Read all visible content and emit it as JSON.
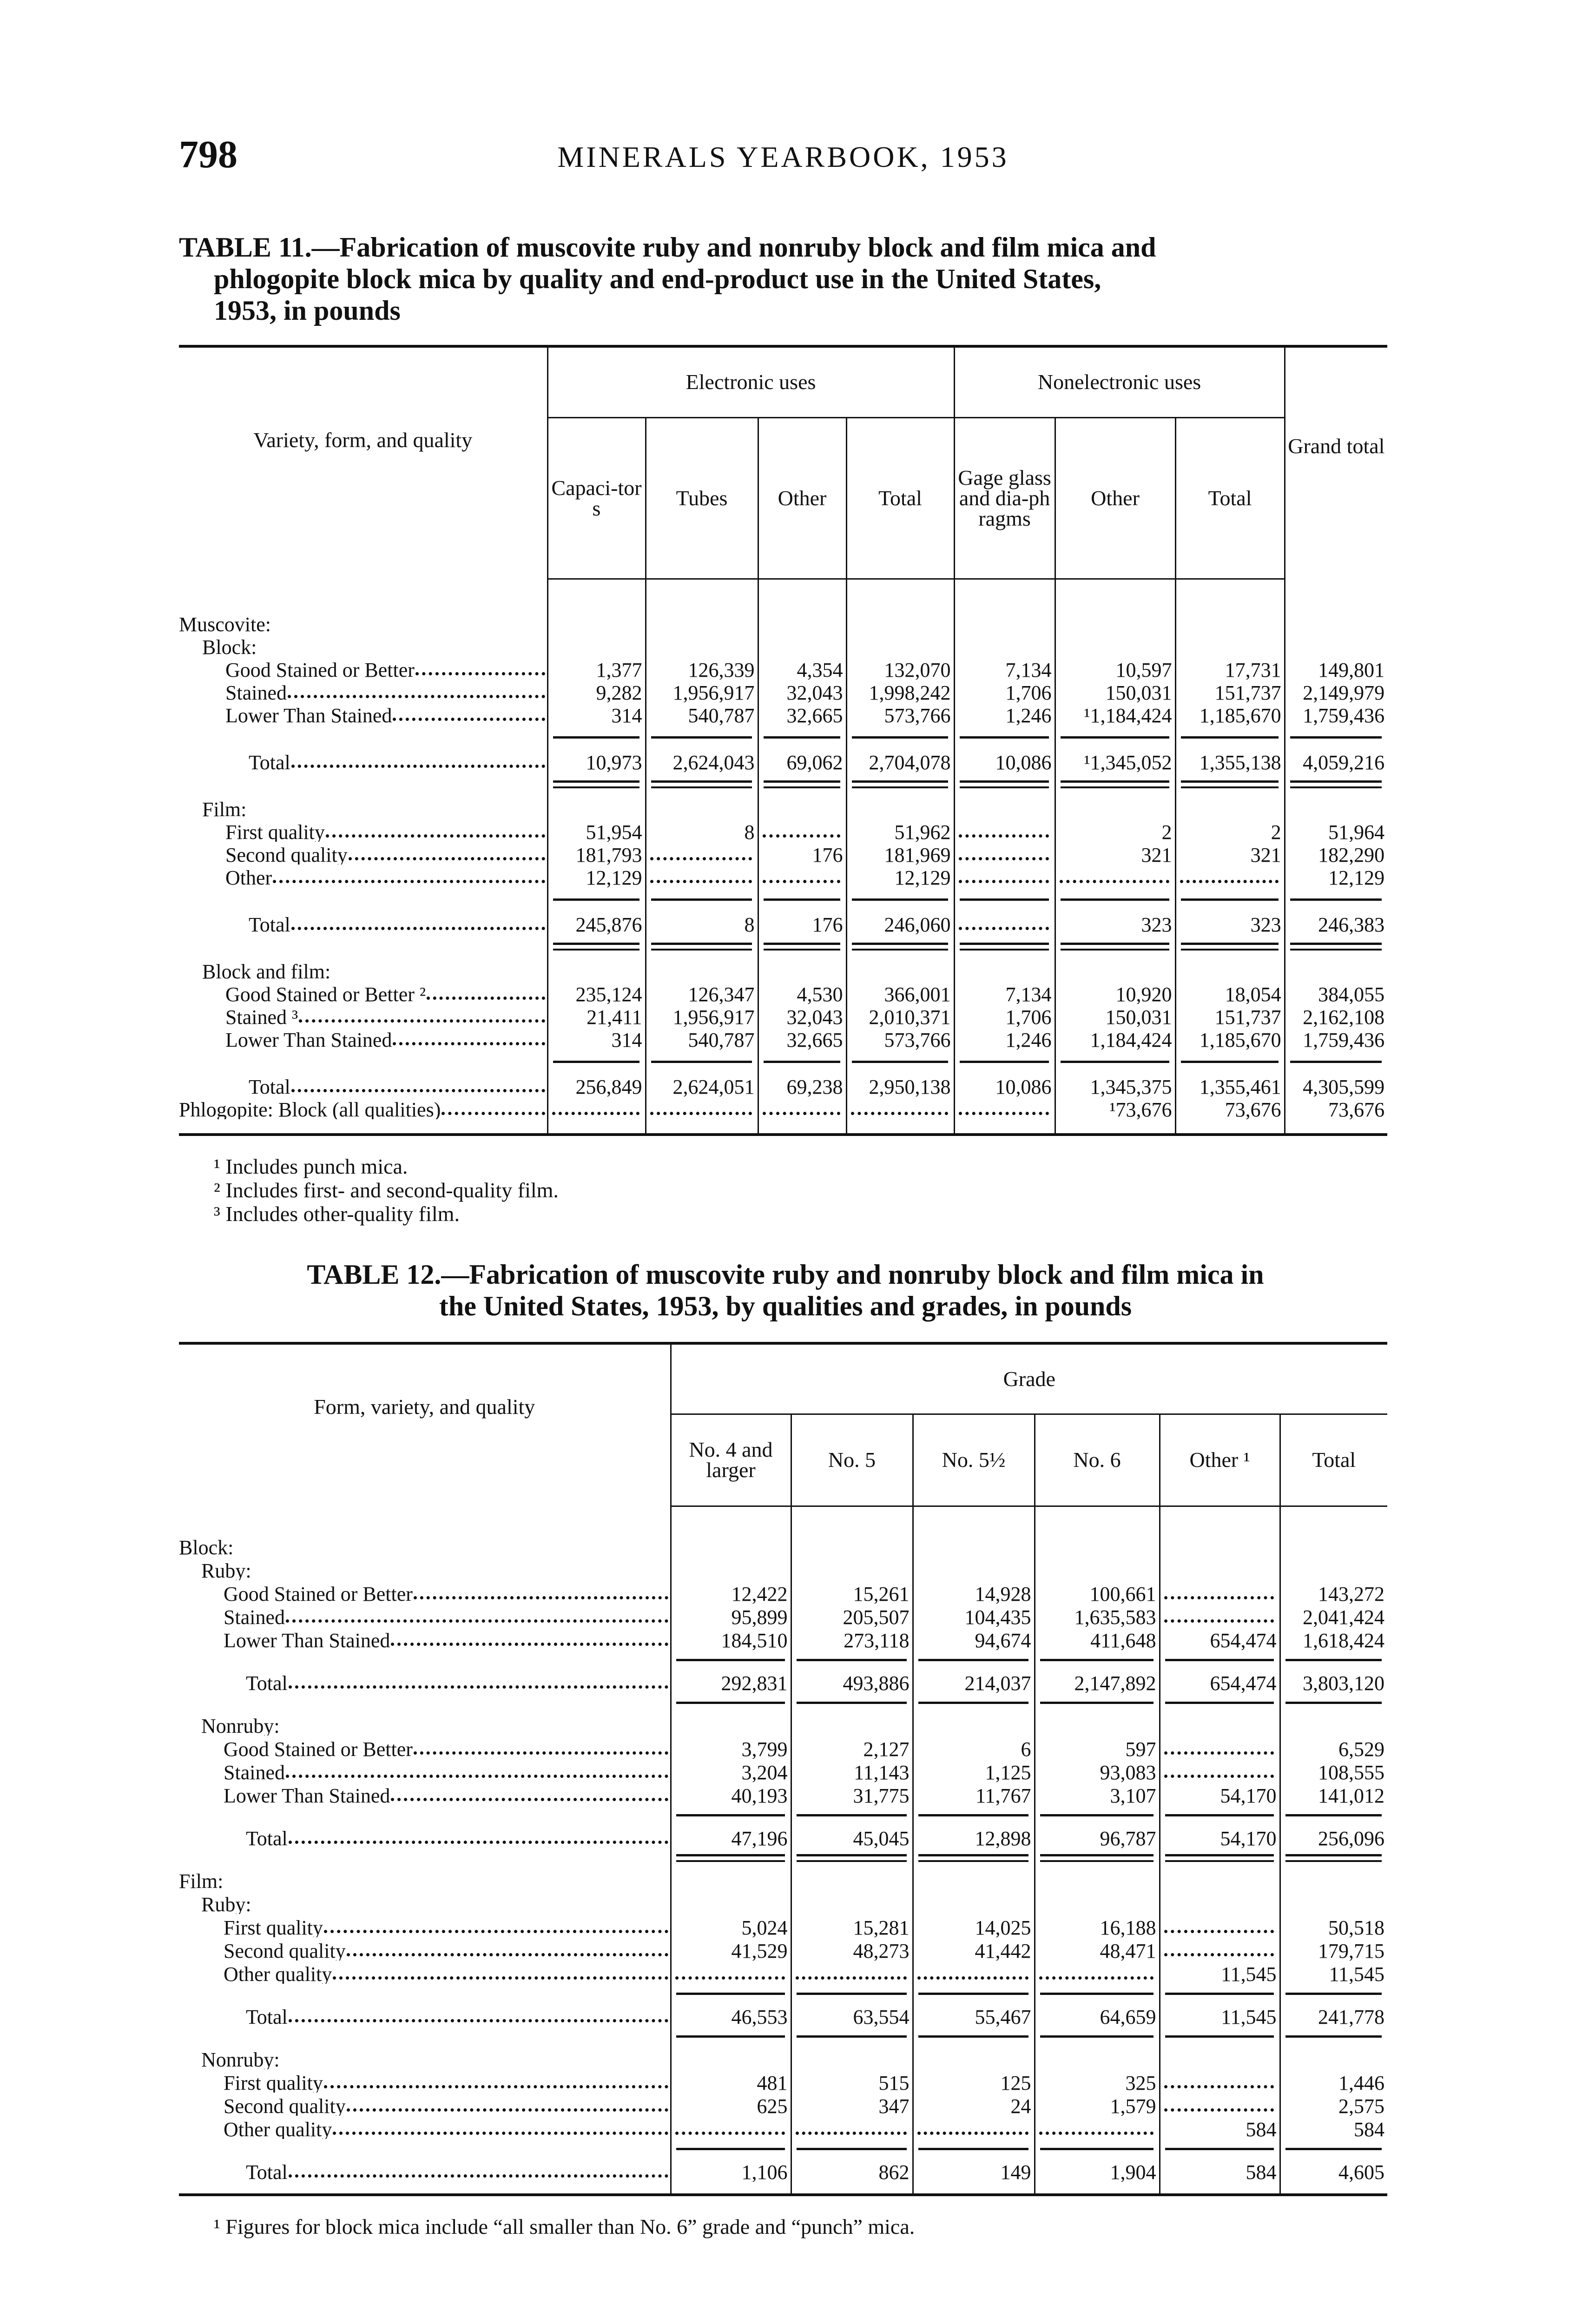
{
  "header": {
    "page_number": "798",
    "running_head": "MINERALS YEARBOOK, 1953"
  },
  "table11": {
    "title_lines": [
      "TABLE 11.—Fabrication of muscovite ruby and nonruby block and film mica and",
      "phlogopite block mica by quality and end-product use in the United States,",
      "1953, in pounds"
    ],
    "stub_header": "Variety, form, and quality",
    "groups": [
      "Electronic uses",
      "Nonelectronic uses"
    ],
    "columns": [
      "Capaci-tors",
      "Tubes",
      "Other",
      "Total",
      "Gage glass and dia-phragms",
      "Other",
      "Total"
    ],
    "grand_total_header": "Grand total",
    "rows": [
      {
        "type": "head",
        "indent": 0,
        "label": "Muscovite:"
      },
      {
        "type": "head",
        "indent": 1,
        "label": "Block:"
      },
      {
        "type": "data",
        "indent": 2,
        "label": "Good Stained or Better",
        "cells": [
          "1,377",
          "126,339",
          "4,354",
          "132,070",
          "7,134",
          "10,597",
          "17,731",
          "149,801"
        ]
      },
      {
        "type": "data",
        "indent": 2,
        "label": "Stained",
        "cells": [
          "9,282",
          "1,956,917",
          "32,043",
          "1,998,242",
          "1,706",
          "150,031",
          "151,737",
          "2,149,979"
        ]
      },
      {
        "type": "data",
        "indent": 2,
        "label": "Lower Than Stained",
        "cells": [
          "314",
          "540,787",
          "32,665",
          "573,766",
          "1,246",
          "¹1,184,424",
          "1,185,670",
          "1,759,436"
        ]
      },
      {
        "type": "rule",
        "style": "single"
      },
      {
        "type": "data",
        "indent": 3,
        "label": "Total",
        "cells": [
          "10,973",
          "2,624,043",
          "69,062",
          "2,704,078",
          "10,086",
          "¹1,345,052",
          "1,355,138",
          "4,059,216"
        ]
      },
      {
        "type": "rule",
        "style": "double"
      },
      {
        "type": "head",
        "indent": 1,
        "label": "Film:"
      },
      {
        "type": "data",
        "indent": 2,
        "label": "First quality",
        "cells": [
          "51,954",
          "8",
          null,
          "51,962",
          null,
          "2",
          "2",
          "51,964"
        ]
      },
      {
        "type": "data",
        "indent": 2,
        "label": "Second quality",
        "cells": [
          "181,793",
          null,
          "176",
          "181,969",
          null,
          "321",
          "321",
          "182,290"
        ]
      },
      {
        "type": "data",
        "indent": 2,
        "label": "Other",
        "cells": [
          "12,129",
          null,
          null,
          "12,129",
          null,
          null,
          null,
          "12,129"
        ]
      },
      {
        "type": "rule",
        "style": "single"
      },
      {
        "type": "data",
        "indent": 3,
        "label": "Total",
        "cells": [
          "245,876",
          "8",
          "176",
          "246,060",
          null,
          "323",
          "323",
          "246,383"
        ]
      },
      {
        "type": "rule",
        "style": "double"
      },
      {
        "type": "head",
        "indent": 1,
        "label": "Block and film:"
      },
      {
        "type": "data",
        "indent": 2,
        "label": "Good Stained or Better ²",
        "cells": [
          "235,124",
          "126,347",
          "4,530",
          "366,001",
          "7,134",
          "10,920",
          "18,054",
          "384,055"
        ]
      },
      {
        "type": "data",
        "indent": 2,
        "label": "Stained ³",
        "cells": [
          "21,411",
          "1,956,917",
          "32,043",
          "2,010,371",
          "1,706",
          "150,031",
          "151,737",
          "2,162,108"
        ]
      },
      {
        "type": "data",
        "indent": 2,
        "label": "Lower Than Stained",
        "cells": [
          "314",
          "540,787",
          "32,665",
          "573,766",
          "1,246",
          "1,184,424",
          "1,185,670",
          "1,759,436"
        ]
      },
      {
        "type": "rule",
        "style": "single"
      },
      {
        "type": "data",
        "indent": 3,
        "label": "Total",
        "cells": [
          "256,849",
          "2,624,051",
          "69,238",
          "2,950,138",
          "10,086",
          "1,345,375",
          "1,355,461",
          "4,305,599"
        ]
      },
      {
        "type": "data",
        "indent": 0,
        "label": "Phlogopite: Block (all qualities)",
        "cells": [
          null,
          null,
          null,
          null,
          null,
          "¹73,676",
          "73,676",
          "73,676"
        ]
      }
    ],
    "footnotes": [
      "¹ Includes punch mica.",
      "² Includes first- and second-quality film.",
      "³ Includes other-quality film."
    ]
  },
  "table12": {
    "title_lines": [
      "TABLE 12.—Fabrication of muscovite ruby and nonruby block and film mica in",
      "the United States, 1953, by qualities and grades, in pounds"
    ],
    "stub_header": "Form, variety, and quality",
    "group": "Grade",
    "columns": [
      "No. 4 and larger",
      "No. 5",
      "No. 5½",
      "No. 6",
      "Other ¹",
      "Total"
    ],
    "rows": [
      {
        "type": "head",
        "indent": 0,
        "label": "Block:"
      },
      {
        "type": "head",
        "indent": 1,
        "label": "Ruby:"
      },
      {
        "type": "data",
        "indent": 2,
        "label": "Good Stained or Better",
        "cells": [
          "12,422",
          "15,261",
          "14,928",
          "100,661",
          null,
          "143,272"
        ]
      },
      {
        "type": "data",
        "indent": 2,
        "label": "Stained",
        "cells": [
          "95,899",
          "205,507",
          "104,435",
          "1,635,583",
          null,
          "2,041,424"
        ]
      },
      {
        "type": "data",
        "indent": 2,
        "label": "Lower Than Stained",
        "cells": [
          "184,510",
          "273,118",
          "94,674",
          "411,648",
          "654,474",
          "1,618,424"
        ]
      },
      {
        "type": "rule",
        "style": "single"
      },
      {
        "type": "data",
        "indent": 3,
        "label": "Total",
        "cells": [
          "292,831",
          "493,886",
          "214,037",
          "2,147,892",
          "654,474",
          "3,803,120"
        ]
      },
      {
        "type": "rule",
        "style": "single"
      },
      {
        "type": "head",
        "indent": 1,
        "label": "Nonruby:"
      },
      {
        "type": "data",
        "indent": 2,
        "label": "Good Stained or Better",
        "cells": [
          "3,799",
          "2,127",
          "6",
          "597",
          null,
          "6,529"
        ]
      },
      {
        "type": "data",
        "indent": 2,
        "label": "Stained",
        "cells": [
          "3,204",
          "11,143",
          "1,125",
          "93,083",
          null,
          "108,555"
        ]
      },
      {
        "type": "data",
        "indent": 2,
        "label": "Lower Than Stained",
        "cells": [
          "40,193",
          "31,775",
          "11,767",
          "3,107",
          "54,170",
          "141,012"
        ]
      },
      {
        "type": "rule",
        "style": "single"
      },
      {
        "type": "data",
        "indent": 3,
        "label": "Total",
        "cells": [
          "47,196",
          "45,045",
          "12,898",
          "96,787",
          "54,170",
          "256,096"
        ]
      },
      {
        "type": "rule",
        "style": "double"
      },
      {
        "type": "head",
        "indent": 0,
        "label": "Film:"
      },
      {
        "type": "head",
        "indent": 1,
        "label": "Ruby:"
      },
      {
        "type": "data",
        "indent": 2,
        "label": "First quality",
        "cells": [
          "5,024",
          "15,281",
          "14,025",
          "16,188",
          null,
          "50,518"
        ]
      },
      {
        "type": "data",
        "indent": 2,
        "label": "Second quality",
        "cells": [
          "41,529",
          "48,273",
          "41,442",
          "48,471",
          null,
          "179,715"
        ]
      },
      {
        "type": "data",
        "indent": 2,
        "label": "Other quality",
        "cells": [
          null,
          null,
          null,
          null,
          "11,545",
          "11,545"
        ]
      },
      {
        "type": "rule",
        "style": "single"
      },
      {
        "type": "data",
        "indent": 3,
        "label": "Total",
        "cells": [
          "46,553",
          "63,554",
          "55,467",
          "64,659",
          "11,545",
          "241,778"
        ]
      },
      {
        "type": "rule",
        "style": "single"
      },
      {
        "type": "head",
        "indent": 1,
        "label": "Nonruby:"
      },
      {
        "type": "data",
        "indent": 2,
        "label": "First quality",
        "cells": [
          "481",
          "515",
          "125",
          "325",
          null,
          "1,446"
        ]
      },
      {
        "type": "data",
        "indent": 2,
        "label": "Second quality",
        "cells": [
          "625",
          "347",
          "24",
          "1,579",
          null,
          "2,575"
        ]
      },
      {
        "type": "data",
        "indent": 2,
        "label": "Other quality",
        "cells": [
          null,
          null,
          null,
          null,
          "584",
          "584"
        ]
      },
      {
        "type": "rule",
        "style": "single"
      },
      {
        "type": "data",
        "indent": 3,
        "label": "Total",
        "cells": [
          "1,106",
          "862",
          "149",
          "1,904",
          "584",
          "4,605"
        ]
      }
    ],
    "footnotes": [
      "¹ Figures for block mica include “all smaller than No. 6” grade and “punch” mica."
    ]
  }
}
